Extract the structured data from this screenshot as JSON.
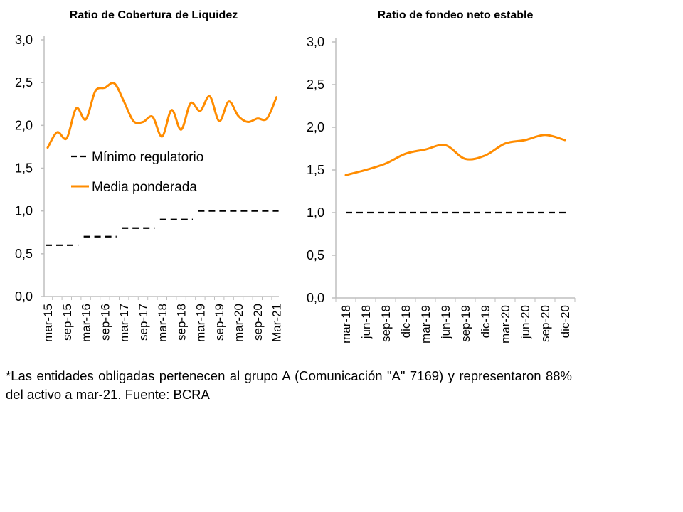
{
  "chart_data": [
    {
      "type": "line",
      "title": "Ratio de Cobertura de Liquidez",
      "ylim": [
        0,
        3
      ],
      "yticks": [
        "0,0",
        "0,5",
        "1,0",
        "1,5",
        "2,0",
        "2,5",
        "3,0"
      ],
      "xtick_labels": [
        "mar-15",
        "sep-15",
        "mar-16",
        "sep-16",
        "mar-17",
        "sep-17",
        "mar-18",
        "sep-18",
        "mar-19",
        "sep-19",
        "mar-20",
        "sep-20",
        "Mar-21"
      ],
      "legend_placement": "center-left",
      "series": [
        {
          "name": "Mínimo regulatorio",
          "style": "dashed",
          "color": "#000000",
          "values": [
            0.6,
            0.6,
            0.6,
            0.6,
            0.7,
            0.7,
            0.7,
            0.7,
            0.8,
            0.8,
            0.8,
            0.8,
            0.9,
            0.9,
            0.9,
            0.9,
            1.0,
            1.0,
            1.0,
            1.0,
            1.0,
            1.0,
            1.0,
            1.0,
            1.0
          ]
        },
        {
          "name": "Media ponderada",
          "style": "solid",
          "color": "#FF8C00",
          "values": [
            1.74,
            1.92,
            1.85,
            2.2,
            2.07,
            2.4,
            2.44,
            2.49,
            2.28,
            2.05,
            2.04,
            2.1,
            1.87,
            2.18,
            1.95,
            2.26,
            2.17,
            2.34,
            2.05,
            2.28,
            2.11,
            2.04,
            2.08,
            2.08,
            2.33
          ]
        }
      ]
    },
    {
      "type": "line",
      "title": "Ratio de fondeo neto estable",
      "ylim": [
        0,
        3
      ],
      "yticks": [
        "0,0",
        "0,5",
        "1,0",
        "1,5",
        "2,0",
        "2,5",
        "3,0"
      ],
      "xtick_labels": [
        "mar-18",
        "jun-18",
        "sep-18",
        "dic-18",
        "mar-19",
        "jun-19",
        "sep-19",
        "dic-19",
        "mar-20",
        "jun-20",
        "sep-20",
        "dic-20"
      ],
      "series": [
        {
          "style": "dashed",
          "color": "#000000",
          "values": [
            1,
            1,
            1,
            1,
            1,
            1,
            1,
            1,
            1,
            1,
            1,
            1
          ]
        },
        {
          "style": "solid",
          "color": "#FF8C00",
          "values": [
            1.44,
            1.5,
            1.575,
            1.69,
            1.74,
            1.79,
            1.63,
            1.67,
            1.81,
            1.85,
            1.91,
            1.85
          ]
        }
      ]
    }
  ],
  "footnote": "*Las entidades obligadas pertenecen al grupo A (Comunicación \"A\" 7169) y representaron 88% del activo a mar-21. Fuente: BCRA"
}
